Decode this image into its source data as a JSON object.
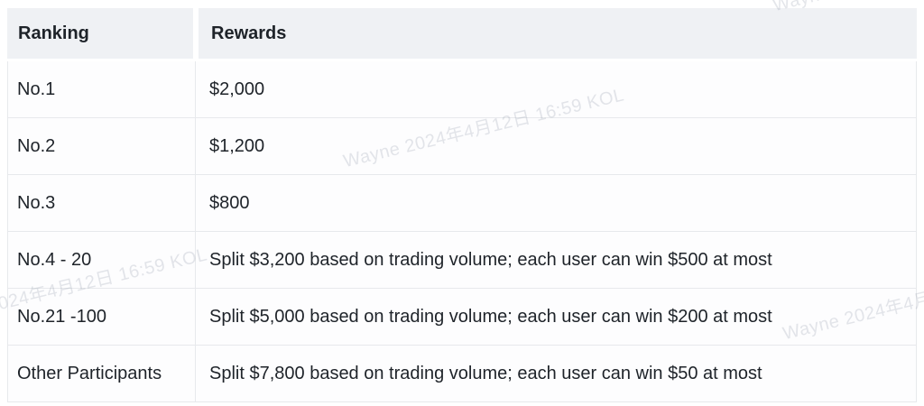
{
  "watermark": {
    "text": "Wayne 2024年4月12日 16:59 KOL"
  },
  "table": {
    "columns": [
      {
        "label": "Ranking"
      },
      {
        "label": "Rewards"
      }
    ],
    "rows": [
      {
        "ranking": "No.1",
        "reward": "$2,000"
      },
      {
        "ranking": "No.2",
        "reward": "$1,200"
      },
      {
        "ranking": "No.3",
        "reward": "$800"
      },
      {
        "ranking": "No.4 - 20",
        "reward": "Split $3,200 based on trading volume; each user can win $500 at most"
      },
      {
        "ranking": "No.21 -100",
        "reward": "Split $5,000 based on trading volume; each user can win $200 at most"
      },
      {
        "ranking": "Other Participants",
        "reward": "Split $7,800 based on trading volume; each user can win $50 at most"
      }
    ]
  },
  "colors": {
    "header_background": "#eff1f4",
    "row_background": "#fdfdfe",
    "border": "#e7e9ec",
    "text": "#1e2329",
    "watermark": "#e6e8ee",
    "page_background": "#ffffff"
  }
}
